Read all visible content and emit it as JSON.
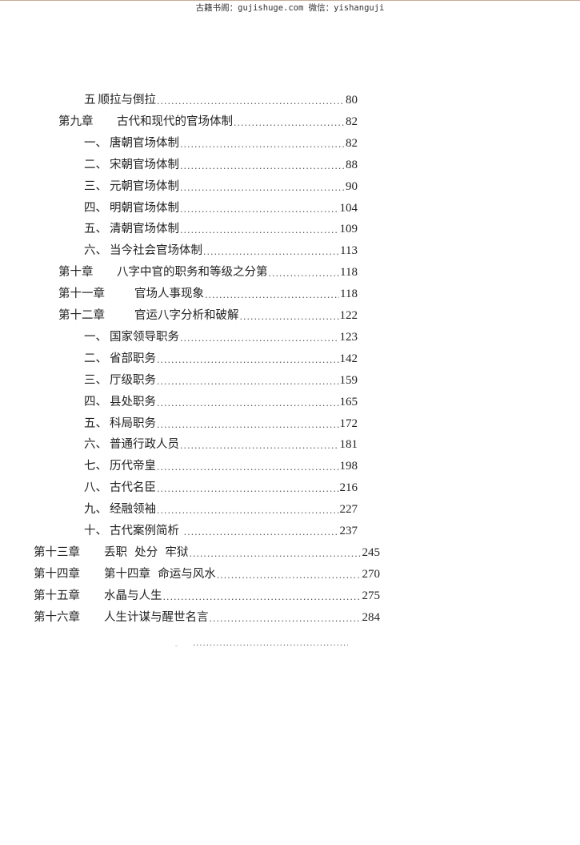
{
  "header": {
    "watermark": "古籍书阁：gujishuge.com 微信：yishanguji"
  },
  "toc": [
    {
      "level": "section",
      "prefix": "五",
      "title": "顺拉与倒拉",
      "page": "80"
    },
    {
      "level": "chapter",
      "prefix": "第九章",
      "title": "古代和现代的官场体制",
      "page": "82"
    },
    {
      "level": "section",
      "prefix": "一、",
      "title": "唐朝官场体制",
      "page": "82"
    },
    {
      "level": "section",
      "prefix": "二、",
      "title": "宋朝官场体制",
      "page": "88"
    },
    {
      "level": "section",
      "prefix": "三、",
      "title": "元朝官场体制",
      "page": "90"
    },
    {
      "level": "section",
      "prefix": "四、",
      "title": "明朝官场体制",
      "page": "104"
    },
    {
      "level": "section",
      "prefix": "五、",
      "title": "清朝官场体制",
      "page": "109"
    },
    {
      "level": "section",
      "prefix": "六、",
      "title": "当今社会官场体制",
      "page": "113"
    },
    {
      "level": "chapter",
      "prefix": "第十章",
      "title": "八字中官的职务和等级之分第",
      "page": "118"
    },
    {
      "level": "chapter",
      "prefix": "第十一章",
      "title": "官场人事现象",
      "page": "118"
    },
    {
      "level": "chapter",
      "prefix": "第十二章",
      "title": "官运八字分析和破解",
      "page": "122"
    },
    {
      "level": "section",
      "prefix": "一、",
      "title": "国家领导职务",
      "page": "123"
    },
    {
      "level": "section",
      "prefix": "二、",
      "title": "省部职务",
      "page": "142"
    },
    {
      "level": "section",
      "prefix": "三、",
      "title": "厅级职务",
      "page": "159"
    },
    {
      "level": "section",
      "prefix": "四、",
      "title": "县处职务",
      "page": "165"
    },
    {
      "level": "section",
      "prefix": "五、",
      "title": "科局职务",
      "page": "172"
    },
    {
      "level": "section",
      "prefix": "六、",
      "title": "普通行政人员",
      "page": "181"
    },
    {
      "level": "section",
      "prefix": "七、",
      "title": "历代帝皇",
      "page": "198"
    },
    {
      "level": "section",
      "prefix": "八、",
      "title": "古代名臣",
      "page": "216"
    },
    {
      "level": "section",
      "prefix": "九、",
      "title": "经融领袖",
      "page": "227"
    },
    {
      "level": "section",
      "prefix": "十、",
      "title": "古代案例简析 ",
      "page": "237"
    },
    {
      "level": "outer",
      "prefix": "第十三章",
      "title": "丢职  处分  牢狱",
      "page": "245"
    },
    {
      "level": "outer",
      "prefix": "第十四章",
      "title": "第十四章  命运与风水",
      "page": "270"
    },
    {
      "level": "outer",
      "prefix": "第十五章",
      "title": "水晶与人生",
      "page": "275"
    },
    {
      "level": "outer",
      "prefix": "第十六章",
      "title": "人生计谋与醒世名言",
      "page": "284"
    }
  ]
}
